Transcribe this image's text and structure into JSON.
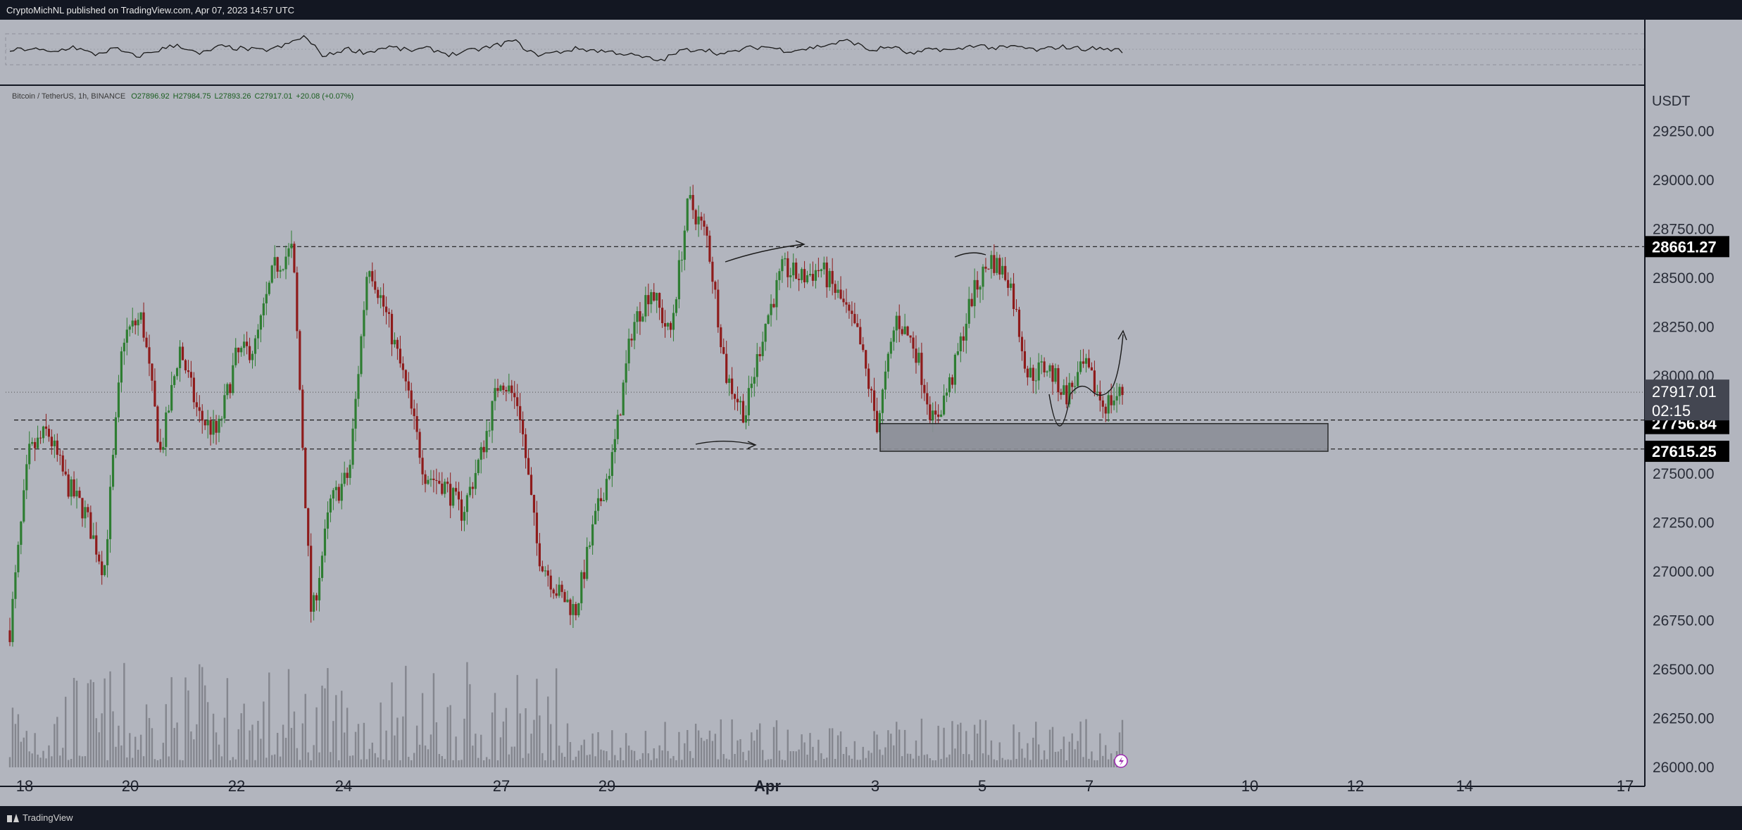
{
  "header": {
    "published": "CryptoMichNL published on TradingView.com, Apr 07, 2023 14:57 UTC"
  },
  "footer": {
    "brand": "TradingView"
  },
  "symbol": {
    "name": "Bitcoin / TetherUS, 1h, BINANCE",
    "open": "O27896.92",
    "high": "H27984.75",
    "low": "L27893.26",
    "close": "C27917.01",
    "change": "+20.08 (+0.07%)"
  },
  "colors": {
    "background": "#b2b5be",
    "up_candle": "#2e7d32",
    "down_candle": "#8e1b1b",
    "price_label_bg": "#000000",
    "current_label_bg": "#434651"
  },
  "chart_data": {
    "type": "candlestick",
    "currency_label": "USDT",
    "ylim": [
      26000,
      29400
    ],
    "y_ticks": [
      "29250.00",
      "29000.00",
      "28750.00",
      "28500.00",
      "28250.00",
      "28000.00",
      "27750.00",
      "27500.00",
      "27250.00",
      "27000.00",
      "26750.00",
      "26500.00",
      "26250.00",
      "26000.00"
    ],
    "x_ticks": [
      "18",
      "20",
      "22",
      "24",
      "27",
      "29",
      "Apr",
      "3",
      "5",
      "7",
      "10",
      "12",
      "14",
      "17"
    ],
    "price_labels": [
      {
        "value": "28661.27",
        "y": 28661.27
      },
      {
        "value": "27756.84",
        "y": 27756.84
      },
      {
        "value": "27615.25",
        "y": 27615.25
      }
    ],
    "current_price": {
      "value": "27917.01",
      "countdown": "02:15",
      "y": 27917.01
    },
    "horizontal_levels": [
      28661.27,
      27775,
      27627
    ],
    "support_zone": {
      "from": 27615.25,
      "to": 27756.84
    },
    "price_path": [
      [
        "18",
        26700
      ],
      [
        "18",
        27600
      ],
      [
        "18",
        27720
      ],
      [
        "19",
        27450
      ],
      [
        "19",
        27300
      ],
      [
        "19",
        27000
      ],
      [
        "20",
        28200
      ],
      [
        "20",
        28300
      ],
      [
        "20",
        27600
      ],
      [
        "21",
        28150
      ],
      [
        "21",
        27800
      ],
      [
        "21",
        27700
      ],
      [
        "22",
        28100
      ],
      [
        "22",
        28150
      ],
      [
        "22",
        28550
      ],
      [
        "22",
        28650
      ],
      [
        "22",
        26750
      ],
      [
        "23",
        27350
      ],
      [
        "23",
        27500
      ],
      [
        "23",
        28600
      ],
      [
        "24",
        28300
      ],
      [
        "24",
        27950
      ],
      [
        "25",
        27500
      ],
      [
        "26",
        27450
      ],
      [
        "26",
        27300
      ],
      [
        "26",
        27600
      ],
      [
        "27",
        28000
      ],
      [
        "27",
        27850
      ],
      [
        "27",
        27100
      ],
      [
        "28",
        26900
      ],
      [
        "28",
        26800
      ],
      [
        "29",
        27250
      ],
      [
        "29",
        27600
      ],
      [
        "29",
        28250
      ],
      [
        "29",
        28450
      ],
      [
        "30",
        28200
      ],
      [
        "30",
        28900
      ],
      [
        "30",
        28700
      ],
      [
        "31",
        28000
      ],
      [
        "31",
        27800
      ],
      [
        "31",
        28250
      ],
      [
        "Apr",
        28550
      ],
      [
        "Apr",
        28500
      ],
      [
        "2",
        28550
      ],
      [
        "2",
        28400
      ],
      [
        "3",
        28200
      ],
      [
        "3",
        27750
      ],
      [
        "3",
        28300
      ],
      [
        "4",
        28150
      ],
      [
        "4",
        27750
      ],
      [
        "4",
        28000
      ],
      [
        "5",
        28400
      ],
      [
        "5",
        28600
      ],
      [
        "5",
        28500
      ],
      [
        "6",
        28000
      ],
      [
        "6",
        28050
      ],
      [
        "6",
        27900
      ],
      [
        "7",
        28050
      ],
      [
        "7",
        27850
      ],
      [
        "7",
        27917
      ]
    ],
    "oscillator_path": [
      0.45,
      0.5,
      0.4,
      0.55,
      0.35,
      0.5,
      0.3,
      0.45,
      0.6,
      0.35,
      0.55,
      0.5,
      0.45,
      0.55,
      0.8,
      0.3,
      0.5,
      0.4,
      0.55,
      0.45,
      0.5,
      0.35,
      0.45,
      0.55,
      0.7,
      0.35,
      0.4,
      0.5,
      0.45,
      0.4,
      0.3,
      0.2,
      0.45,
      0.5,
      0.35,
      0.5,
      0.55,
      0.45,
      0.5,
      0.6,
      0.7,
      0.45,
      0.55,
      0.35,
      0.5,
      0.45,
      0.6,
      0.5,
      0.55,
      0.45,
      0.55,
      0.5,
      0.5,
      0.45
    ]
  }
}
